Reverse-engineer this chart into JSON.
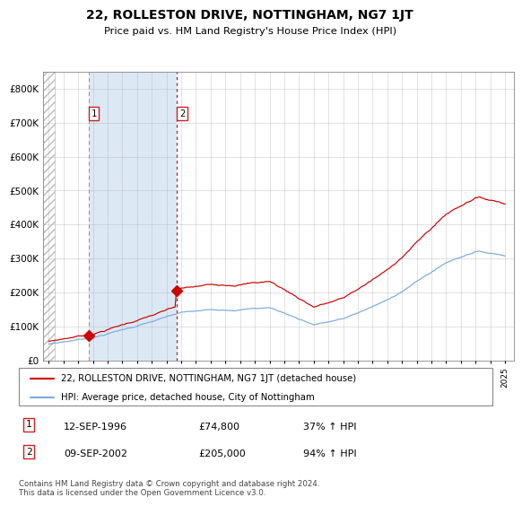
{
  "title": "22, ROLLESTON DRIVE, NOTTINGHAM, NG7 1JT",
  "subtitle": "Price paid vs. HM Land Registry's House Price Index (HPI)",
  "legend_line1": "22, ROLLESTON DRIVE, NOTTINGHAM, NG7 1JT (detached house)",
  "legend_line2": "HPI: Average price, detached house, City of Nottingham",
  "annotation1_date": "12-SEP-1996",
  "annotation1_price": 74800,
  "annotation1_hpi": "37% ↑ HPI",
  "annotation2_date": "09-SEP-2002",
  "annotation2_price": 205000,
  "annotation2_hpi": "94% ↑ HPI",
  "footnote": "Contains HM Land Registry data © Crown copyright and database right 2024.\nThis data is licensed under the Open Government Licence v3.0.",
  "bg_color": "#ffffff",
  "grid_color": "#aaaaaa",
  "red_line_color": "#cc0000",
  "blue_line_color": "#7aaadd",
  "shade_color": "#dce9f5",
  "vline1_color": "#999999",
  "vline2_color": "#cc0000",
  "sale1_year": 1996.708,
  "sale2_year": 2002.708,
  "ylim_max": 850000,
  "yticks": [
    0,
    100000,
    200000,
    300000,
    400000,
    500000,
    600000,
    700000,
    800000
  ],
  "ytick_labels": [
    "£0",
    "£100K",
    "£200K",
    "£300K",
    "£400K",
    "£500K",
    "£600K",
    "£700K",
    "£800K"
  ]
}
